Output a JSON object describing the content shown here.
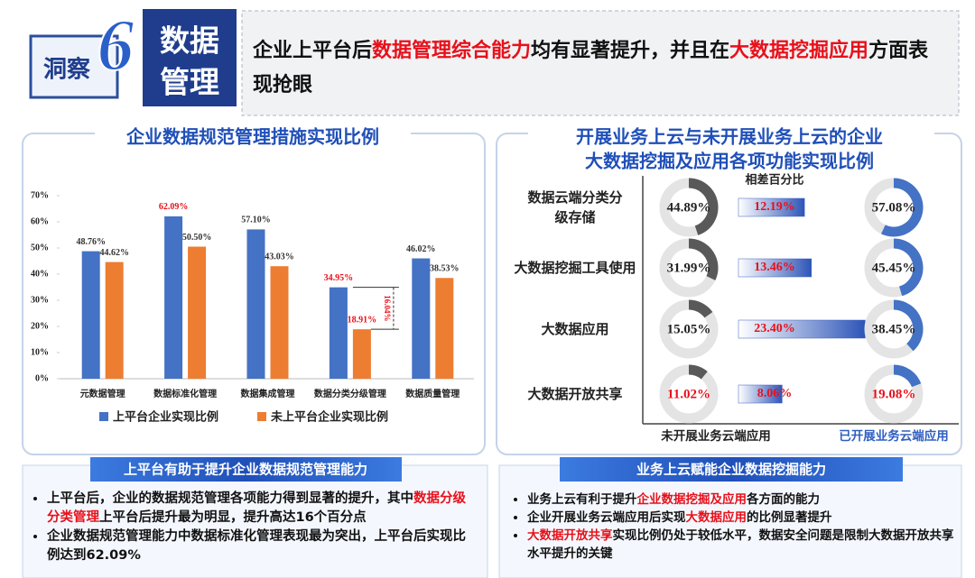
{
  "header": {
    "badge": "洞察",
    "number": "6",
    "tag": [
      "数据",
      "管理"
    ],
    "headline": [
      {
        "text": "企业上平台后"
      },
      {
        "text": "数据管理综合能力",
        "color": "#e8101a"
      },
      {
        "text": "均有显著提升，并且在"
      },
      {
        "text": "大数据挖掘应用",
        "color": "#e8101a"
      },
      {
        "text": "方面表现抢眼"
      }
    ]
  },
  "chart_data": [
    {
      "type": "bar",
      "title": "企业数据规范管理措施实现比例",
      "categories": [
        "元数据管理",
        "数据标准化管理",
        "数据集成管理",
        "数据分类分级管理",
        "数据质量管理"
      ],
      "series": [
        {
          "name": "上平台企业实现比例",
          "color": "#4472c4",
          "values": [
            48.76,
            62.09,
            57.1,
            34.95,
            46.02
          ],
          "value_labels": [
            "48.76%",
            "62.09%",
            "57.10%",
            "34.95%",
            "46.02%"
          ],
          "value_label_colors": [
            "#333333",
            "#e8101a",
            "#333333",
            "#e8101a",
            "#333333"
          ]
        },
        {
          "name": "未上平台企业实现比例",
          "color": "#ed7d31",
          "values": [
            44.62,
            50.5,
            43.03,
            18.91,
            38.53
          ],
          "value_labels": [
            "44.62%",
            "50.50%",
            "43.03%",
            "18.91%",
            "38.53%"
          ],
          "value_label_colors": [
            "#333333",
            "#333333",
            "#333333",
            "#e8101a",
            "#333333"
          ]
        }
      ],
      "ylim": [
        0,
        70
      ],
      "yticks": [
        {
          "value": 0,
          "label": "0%"
        },
        {
          "value": 10,
          "label": "10%"
        },
        {
          "value": 20,
          "label": "20%"
        },
        {
          "value": 30,
          "label": "30%"
        },
        {
          "value": 40,
          "label": "40%"
        },
        {
          "value": 50,
          "label": "50%"
        },
        {
          "value": 60,
          "label": "60%"
        },
        {
          "value": 70,
          "label": "70%"
        }
      ],
      "annotations": [
        {
          "category": "数据分类分级管理",
          "label": "16.04%",
          "value": 16.04,
          "color": "#e8101a"
        }
      ],
      "legend": "bottom"
    },
    {
      "type": "donut_comparison",
      "title": [
        "开展业务上云与未开展业务上云的企业",
        "大数据挖掘及应用各项功能实现比例"
      ],
      "categories": [
        "数据云端分类分\n级存储",
        "大数据挖掘工具使用",
        "大数据应用",
        "大数据开放共享"
      ],
      "track_color": "#e4e4e4",
      "series": [
        {
          "name": "未开展业务云端应用",
          "style": "donut",
          "color": "#595959",
          "label_color": "#222222",
          "values": [
            44.89,
            31.99,
            15.05,
            11.02
          ],
          "value_labels": [
            "44.89%",
            "31.99%",
            "15.05%",
            "11.02%"
          ],
          "value_label_colors": [
            "#222222",
            "#222222",
            "#222222",
            "#e8101a"
          ]
        },
        {
          "name": "相差百分比",
          "style": "bar",
          "color": "#3a5fc0",
          "label_color": "#222222",
          "values": [
            12.19,
            13.46,
            23.4,
            8.06
          ],
          "value_labels": [
            "12.19%",
            "13.46%",
            "23.40%",
            "8.06%"
          ],
          "value_label_colors": [
            "#e8101a",
            "#e8101a",
            "#e8101a",
            "#e8101a"
          ]
        },
        {
          "name": "已开展业务云端应用",
          "style": "donut",
          "color": "#4472c4",
          "label_color": "#2f5fc0",
          "values": [
            57.08,
            45.45,
            38.45,
            19.08
          ],
          "value_labels": [
            "57.08%",
            "45.45%",
            "38.45%",
            "19.08%"
          ],
          "value_label_colors": [
            "#222222",
            "#222222",
            "#222222",
            "#e8101a"
          ]
        }
      ]
    }
  ],
  "summaries": [
    {
      "title": "上平台有助于提升企业数据规范管理能力",
      "bullets": [
        [
          {
            "text": "上平台后，企业的数据规范管理各项能力得到显著的提升，其中"
          },
          {
            "text": "数据分级分类管理",
            "color": "#e8101a"
          },
          {
            "text": "上平台后提升最为明显，提升高达16个百分点"
          }
        ],
        [
          {
            "text": "企业数据规范管理能力中数据标准化管理表现最为突出，上平台后实现比例达到62.09%"
          }
        ]
      ]
    },
    {
      "title": "业务上云赋能企业数据挖掘能力",
      "bullets": [
        [
          {
            "text": "业务上云有利于提升"
          },
          {
            "text": "企业数据挖掘及应用",
            "color": "#e8101a"
          },
          {
            "text": "各方面的能力"
          }
        ],
        [
          {
            "text": "企业开展业务云端应用后实现"
          },
          {
            "text": "大数据应用",
            "color": "#e8101a"
          },
          {
            "text": "的比例显著提升"
          }
        ],
        [
          {
            "text": "大数据开放共享",
            "color": "#e8101a"
          },
          {
            "text": "实现比例仍处于较低水平，数据安全问题是限制大数据开放共享水平提升的关键"
          }
        ]
      ]
    }
  ]
}
